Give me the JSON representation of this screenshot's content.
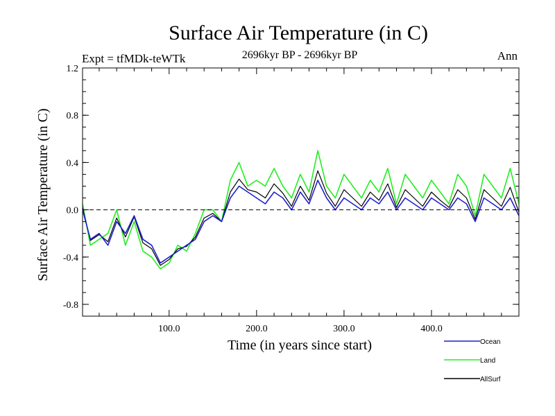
{
  "chart_data": {
    "type": "line",
    "title": "Surface Air Temperature (in C)",
    "subtitle_left": "Expt = tfMDk-teWTk",
    "subtitle_center": "2696kyr BP - 2696kyr BP",
    "subtitle_right": "Ann",
    "xlabel": "Time (in years since start)",
    "ylabel": "Surface Air Temperature (in C)",
    "xlim": [
      1,
      500
    ],
    "ylim": [
      -0.9,
      1.2
    ],
    "x_ticks": [
      100,
      200,
      300,
      400
    ],
    "x_tick_labels": [
      "100.0",
      "200.0",
      "300.0",
      "400.0"
    ],
    "y_ticks": [
      -0.8,
      -0.4,
      0.0,
      0.4,
      0.8,
      1.2
    ],
    "y_tick_labels": [
      "-0.8",
      "-0.4",
      "0.0",
      "0.4",
      "0.8",
      "1.2"
    ],
    "zero_line": "dashed",
    "legend_placement": "bottom-right, below plot",
    "x": [
      1,
      10,
      20,
      30,
      40,
      50,
      60,
      70,
      80,
      90,
      100,
      110,
      120,
      130,
      140,
      150,
      160,
      170,
      180,
      190,
      200,
      210,
      220,
      230,
      240,
      250,
      260,
      270,
      280,
      290,
      300,
      310,
      320,
      330,
      340,
      350,
      360,
      370,
      380,
      390,
      400,
      410,
      420,
      430,
      440,
      450,
      460,
      470,
      480,
      490,
      500
    ],
    "series": [
      {
        "name": "Ocean",
        "color": "#1f1fd0",
        "values": [
          0.0,
          -0.25,
          -0.2,
          -0.3,
          -0.1,
          -0.2,
          -0.05,
          -0.25,
          -0.3,
          -0.45,
          -0.4,
          -0.35,
          -0.3,
          -0.25,
          -0.1,
          -0.05,
          -0.1,
          0.1,
          0.2,
          0.15,
          0.1,
          0.05,
          0.15,
          0.1,
          0.0,
          0.15,
          0.05,
          0.25,
          0.1,
          0.0,
          0.1,
          0.05,
          0.0,
          0.1,
          0.05,
          0.15,
          0.0,
          0.1,
          0.05,
          0.0,
          0.1,
          0.05,
          0.0,
          0.1,
          0.05,
          -0.1,
          0.1,
          0.05,
          0.0,
          0.1,
          -0.05
        ]
      },
      {
        "name": "Land",
        "color": "#22ee22",
        "values": [
          0.05,
          -0.3,
          -0.25,
          -0.2,
          0.0,
          -0.3,
          -0.1,
          -0.35,
          -0.4,
          -0.5,
          -0.45,
          -0.3,
          -0.35,
          -0.2,
          0.0,
          0.0,
          -0.1,
          0.25,
          0.4,
          0.2,
          0.25,
          0.2,
          0.35,
          0.2,
          0.1,
          0.3,
          0.15,
          0.5,
          0.2,
          0.1,
          0.3,
          0.2,
          0.1,
          0.25,
          0.15,
          0.35,
          0.05,
          0.3,
          0.2,
          0.1,
          0.25,
          0.15,
          0.05,
          0.3,
          0.2,
          -0.05,
          0.3,
          0.2,
          0.1,
          0.35,
          0.05
        ]
      },
      {
        "name": "AllSurf",
        "color": "#000000",
        "values": [
          0.02,
          -0.26,
          -0.21,
          -0.27,
          -0.07,
          -0.23,
          -0.06,
          -0.28,
          -0.33,
          -0.47,
          -0.42,
          -0.33,
          -0.31,
          -0.23,
          -0.07,
          -0.03,
          -0.1,
          0.15,
          0.26,
          0.17,
          0.15,
          0.1,
          0.22,
          0.14,
          0.03,
          0.2,
          0.08,
          0.33,
          0.14,
          0.03,
          0.17,
          0.1,
          0.03,
          0.15,
          0.08,
          0.22,
          0.02,
          0.17,
          0.1,
          0.03,
          0.15,
          0.08,
          0.02,
          0.17,
          0.1,
          -0.08,
          0.17,
          0.1,
          0.03,
          0.19,
          -0.02
        ]
      }
    ]
  }
}
